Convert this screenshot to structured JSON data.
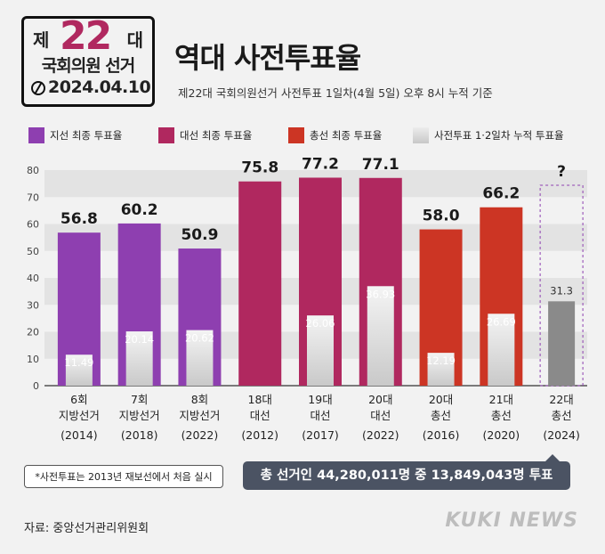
{
  "logo": {
    "je": "제",
    "number": "22",
    "dae": "대",
    "line2": "국회의원 선거",
    "date": "2024.04.10"
  },
  "title": "역대 사전투표율",
  "subtitle": "제22대 국회의원선거 사전투표 1일차(4월 5일) 오후 8시 누적 기준",
  "legend": [
    {
      "label": "지선 최종 투표율",
      "color": "#8e3fb0"
    },
    {
      "label": "대선 최종 투표율",
      "color": "#b0285f"
    },
    {
      "label": "총선 최종 투표율",
      "color": "#cc3524"
    },
    {
      "label": "사전투표 1·2일차 누적 투표율",
      "color": "#d9d9d9"
    }
  ],
  "chart_data": {
    "type": "bar",
    "ylim": [
      0,
      80
    ],
    "yticks": [
      0,
      10,
      20,
      30,
      40,
      50,
      60,
      70,
      80
    ],
    "categories": [
      {
        "line1": "6회",
        "line2": "지방선거",
        "line3": "(2014)"
      },
      {
        "line1": "7회",
        "line2": "지방선거",
        "line3": "(2018)"
      },
      {
        "line1": "8회",
        "line2": "지방선거",
        "line3": "(2022)"
      },
      {
        "line1": "18대",
        "line2": "대선",
        "line3": "(2012)"
      },
      {
        "line1": "19대",
        "line2": "대선",
        "line3": "(2017)"
      },
      {
        "line1": "20대",
        "line2": "대선",
        "line3": "(2022)"
      },
      {
        "line1": "20대",
        "line2": "총선",
        "line3": "(2016)"
      },
      {
        "line1": "21대",
        "line2": "총선",
        "line3": "(2020)"
      },
      {
        "line1": "22대",
        "line2": "총선",
        "line3": "(2024)"
      }
    ],
    "final_turnout": [
      56.8,
      60.2,
      50.9,
      75.8,
      77.2,
      77.1,
      58.0,
      66.2,
      null
    ],
    "final_labels": [
      "56.8",
      "60.2",
      "50.9",
      "75.8",
      "77.2",
      "77.1",
      "58.0",
      "66.2",
      "?"
    ],
    "early_turnout": [
      11.49,
      20.14,
      20.62,
      null,
      26.06,
      36.93,
      12.19,
      26.69,
      31.3
    ],
    "early_labels": [
      "11.49",
      "20.14",
      "20.62",
      "",
      "26.06",
      "36.93",
      "12.19",
      "26.69",
      "31.3"
    ],
    "bar_colors": [
      "#8e3fb0",
      "#8e3fb0",
      "#8e3fb0",
      "#b0285f",
      "#b0285f",
      "#b0285f",
      "#cc3524",
      "#cc3524",
      "#8e3fb0"
    ],
    "current_early_color": "#8a8a8a"
  },
  "note": "*사전투표는 2013년 재보선에서 처음 실시",
  "total": "총 선거인 44,280,011명 중 13,849,043명 투표",
  "source": "자료: 중앙선거관리위원회",
  "brand": "KUKI NEWS"
}
